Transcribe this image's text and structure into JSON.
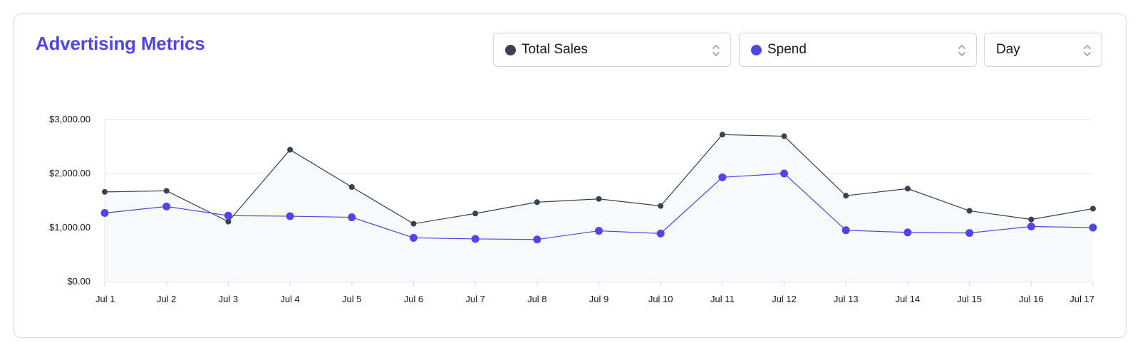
{
  "header": {
    "title": "Advertising Metrics"
  },
  "selects": {
    "metric1": {
      "value": "Total Sales",
      "color": "#374151"
    },
    "metric2": {
      "value": "Spend",
      "color": "#4f46e5"
    },
    "period": {
      "value": "Day"
    }
  },
  "chart_data": {
    "type": "line",
    "categories": [
      "Jul 1",
      "Jul 2",
      "Jul 3",
      "Jul 4",
      "Jul 5",
      "Jul 6",
      "Jul 7",
      "Jul 8",
      "Jul 9",
      "Jul 10",
      "Jul 11",
      "Jul 12",
      "Jul 13",
      "Jul 14",
      "Jul 15",
      "Jul 16",
      "Jul 17"
    ],
    "series": [
      {
        "color": "#374151",
        "area": true,
        "values": [
          1660,
          1680,
          1110,
          2440,
          1750,
          1070,
          1260,
          1470,
          1530,
          1400,
          2720,
          2690,
          1590,
          1720,
          1310,
          1150,
          1350
        ]
      },
      {
        "color": "#4f46e5",
        "values": [
          1270,
          1390,
          1220,
          1210,
          1190,
          810,
          790,
          780,
          940,
          890,
          1930,
          2000,
          950,
          910,
          900,
          1020,
          1000
        ]
      }
    ],
    "ylim": [
      0,
      3000
    ],
    "yticks": [
      0,
      1000,
      2000,
      3000
    ],
    "ytick_labels": [
      "$0.00",
      "$1,000.00",
      "$2,000.00",
      "$3,000.00"
    ],
    "grid": true,
    "area_color": "#f8f9fb"
  }
}
